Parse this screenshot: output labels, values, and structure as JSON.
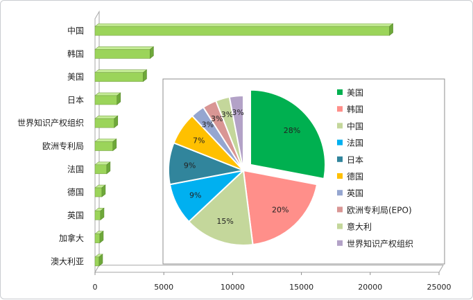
{
  "chart_data": [
    {
      "type": "bar",
      "orientation": "horizontal",
      "categories": [
        "中国",
        "韩国",
        "美国",
        "日本",
        "世界知识产权组织",
        "欧洲专利局",
        "法国",
        "德国",
        "英国",
        "加拿大",
        "澳大利亚"
      ],
      "values": [
        21400,
        4000,
        3500,
        1600,
        1400,
        1300,
        850,
        500,
        400,
        350,
        300
      ],
      "xlim": [
        0,
        25000
      ],
      "xticks": [
        "0",
        "5000",
        "10000",
        "15000",
        "20000",
        "25000"
      ],
      "colors": {
        "bar": "#9bd45a",
        "bar_side": "#6ea83a",
        "bar_top": "#c5ec96"
      },
      "grid": false
    },
    {
      "type": "pie",
      "labels": [
        "美国",
        "韩国",
        "中国",
        "法国",
        "日本",
        "德国",
        "英国",
        "欧洲专利局(EPO)",
        "意大利",
        "世界知识产权组织"
      ],
      "values": [
        28,
        20,
        15,
        9,
        9,
        7,
        3,
        3,
        3,
        3
      ],
      "value_labels": [
        "28%",
        "20%",
        "15%",
        "9%",
        "9%",
        "7%",
        "3%",
        "3%",
        "3%",
        "3%"
      ],
      "colors": [
        "#00b050",
        "#ff8f8a",
        "#c4d79b",
        "#00b0f0",
        "#31859c",
        "#ffc000",
        "#95a6d0",
        "#d99694",
        "#c4d79b",
        "#b3a2c7"
      ],
      "legend_position": "right"
    }
  ]
}
